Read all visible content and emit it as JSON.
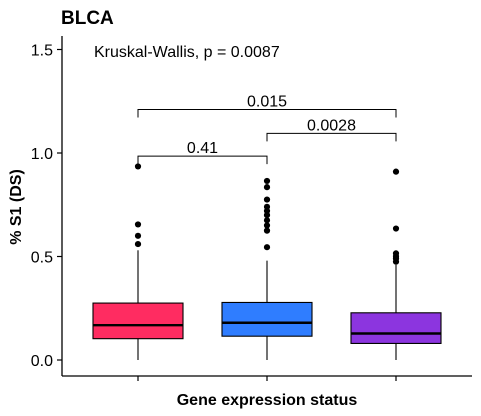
{
  "chart_data": {
    "type": "box",
    "title": "BLCA",
    "xlabel": "Gene expression status",
    "ylabel": "% S1 (DS)",
    "ylim": [
      -0.06,
      1.58
    ],
    "yticks": [
      0.0,
      0.5,
      1.0,
      1.5
    ],
    "ytick_labels": [
      "0.0",
      "0.5",
      "1.0",
      "1.5"
    ],
    "annotation": "Kruskal-Wallis, p = 0.0087",
    "groups": [
      {
        "color": "#FF2C61",
        "q1": 0.103,
        "median": 0.168,
        "q3": 0.275,
        "whisker_low": 0.0,
        "whisker_high": 0.53,
        "outliers": [
          0.56,
          0.6,
          0.655,
          0.935
        ]
      },
      {
        "color": "#2F7DFF",
        "q1": 0.115,
        "median": 0.18,
        "q3": 0.278,
        "whisker_low": 0.0,
        "whisker_high": 0.48,
        "outliers": [
          0.545,
          0.625,
          0.65,
          0.675,
          0.7,
          0.72,
          0.74,
          0.775,
          0.835,
          0.865
        ]
      },
      {
        "color": "#8C35DF",
        "q1": 0.08,
        "median": 0.128,
        "q3": 0.228,
        "whisker_low": 0.0,
        "whisker_high": 0.46,
        "outliers": [
          0.475,
          0.49,
          0.5,
          0.515,
          0.635,
          0.91
        ]
      }
    ],
    "comparisons": [
      {
        "from": 0,
        "to": 2,
        "label": "0.015",
        "y": 1.21
      },
      {
        "from": 1,
        "to": 2,
        "label": "0.0028",
        "y": 1.095
      },
      {
        "from": 0,
        "to": 1,
        "label": "0.41",
        "y": 0.985
      }
    ]
  }
}
